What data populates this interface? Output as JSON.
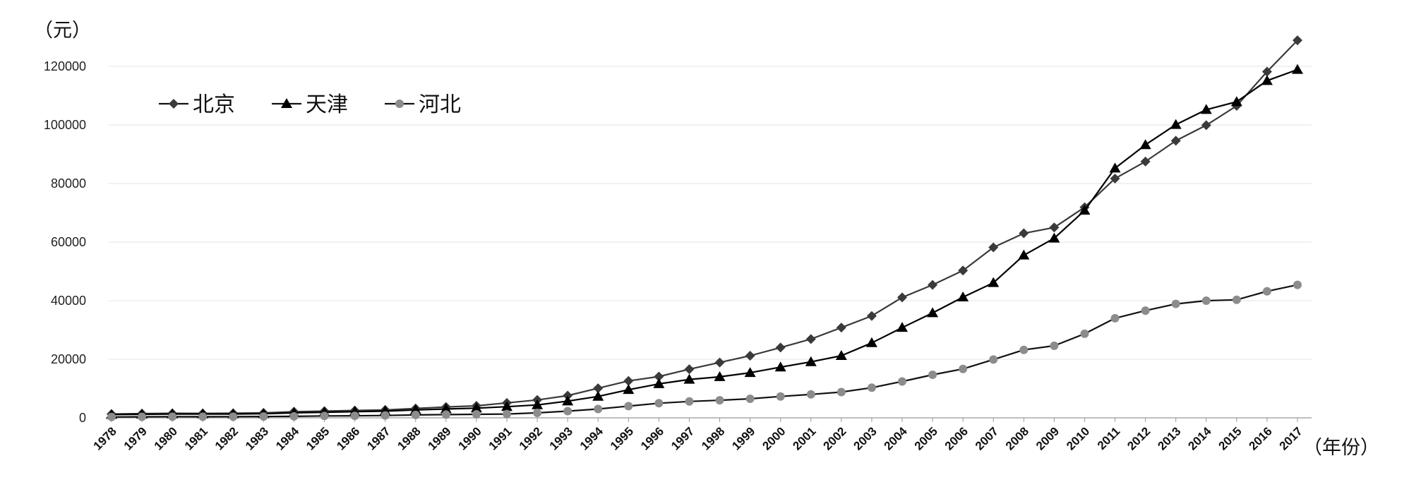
{
  "chart_data": {
    "type": "line",
    "ylabel": "（元）",
    "xlabel": "（年份）",
    "ylim": [
      0,
      120000
    ],
    "yticks": [
      "0",
      "20000",
      "40000",
      "60000",
      "80000",
      "100000",
      "120000"
    ],
    "grid": true,
    "legend_position": "top-left",
    "categories": [
      "1978",
      "1979",
      "1980",
      "1981",
      "1982",
      "1983",
      "1984",
      "1985",
      "1986",
      "1987",
      "1988",
      "1989",
      "1990",
      "1991",
      "1992",
      "1993",
      "1994",
      "1995",
      "1996",
      "1997",
      "1998",
      "1999",
      "2000",
      "2001",
      "2002",
      "2003",
      "2004",
      "2005",
      "2006",
      "2007",
      "2008",
      "2009",
      "2010",
      "2011",
      "2012",
      "2013",
      "2014",
      "2015",
      "2016",
      "2017"
    ],
    "series": [
      {
        "name": "北京",
        "marker": "diamond",
        "color": "#3a3a3a",
        "values": [
          1290,
          1450,
          1540,
          1520,
          1560,
          1680,
          2100,
          2300,
          2500,
          2700,
          3200,
          3700,
          4100,
          5100,
          6100,
          7600,
          10100,
          12600,
          14100,
          16600,
          18900,
          21200,
          24000,
          26900,
          30800,
          34800,
          41100,
          45400,
          50300,
          58200,
          63000,
          65000,
          71900,
          81700,
          87500,
          94600,
          99900,
          106500,
          118200,
          128900
        ]
      },
      {
        "name": "天津",
        "marker": "triangle",
        "color": "#000000",
        "values": [
          1100,
          1200,
          1300,
          1300,
          1300,
          1400,
          1700,
          1900,
          2100,
          2300,
          2700,
          3000,
          3300,
          3800,
          4400,
          5700,
          7300,
          9600,
          11600,
          13100,
          14000,
          15400,
          17300,
          19100,
          21200,
          25600,
          30800,
          35800,
          41200,
          46100,
          55500,
          61300,
          70800,
          85200,
          93200,
          100100,
          105200,
          107900,
          115100,
          118900
        ]
      },
      {
        "name": "河北",
        "marker": "circle",
        "color": "#8c8c8c",
        "values": [
          300,
          350,
          400,
          380,
          400,
          450,
          500,
          650,
          700,
          800,
          1000,
          1100,
          1200,
          1300,
          1700,
          2300,
          3000,
          4000,
          5000,
          5600,
          6000,
          6500,
          7300,
          8000,
          8800,
          10300,
          12400,
          14700,
          16700,
          19900,
          23200,
          24600,
          28700,
          34000,
          36600,
          38900,
          40000,
          40300,
          43200,
          45400
        ]
      }
    ]
  }
}
